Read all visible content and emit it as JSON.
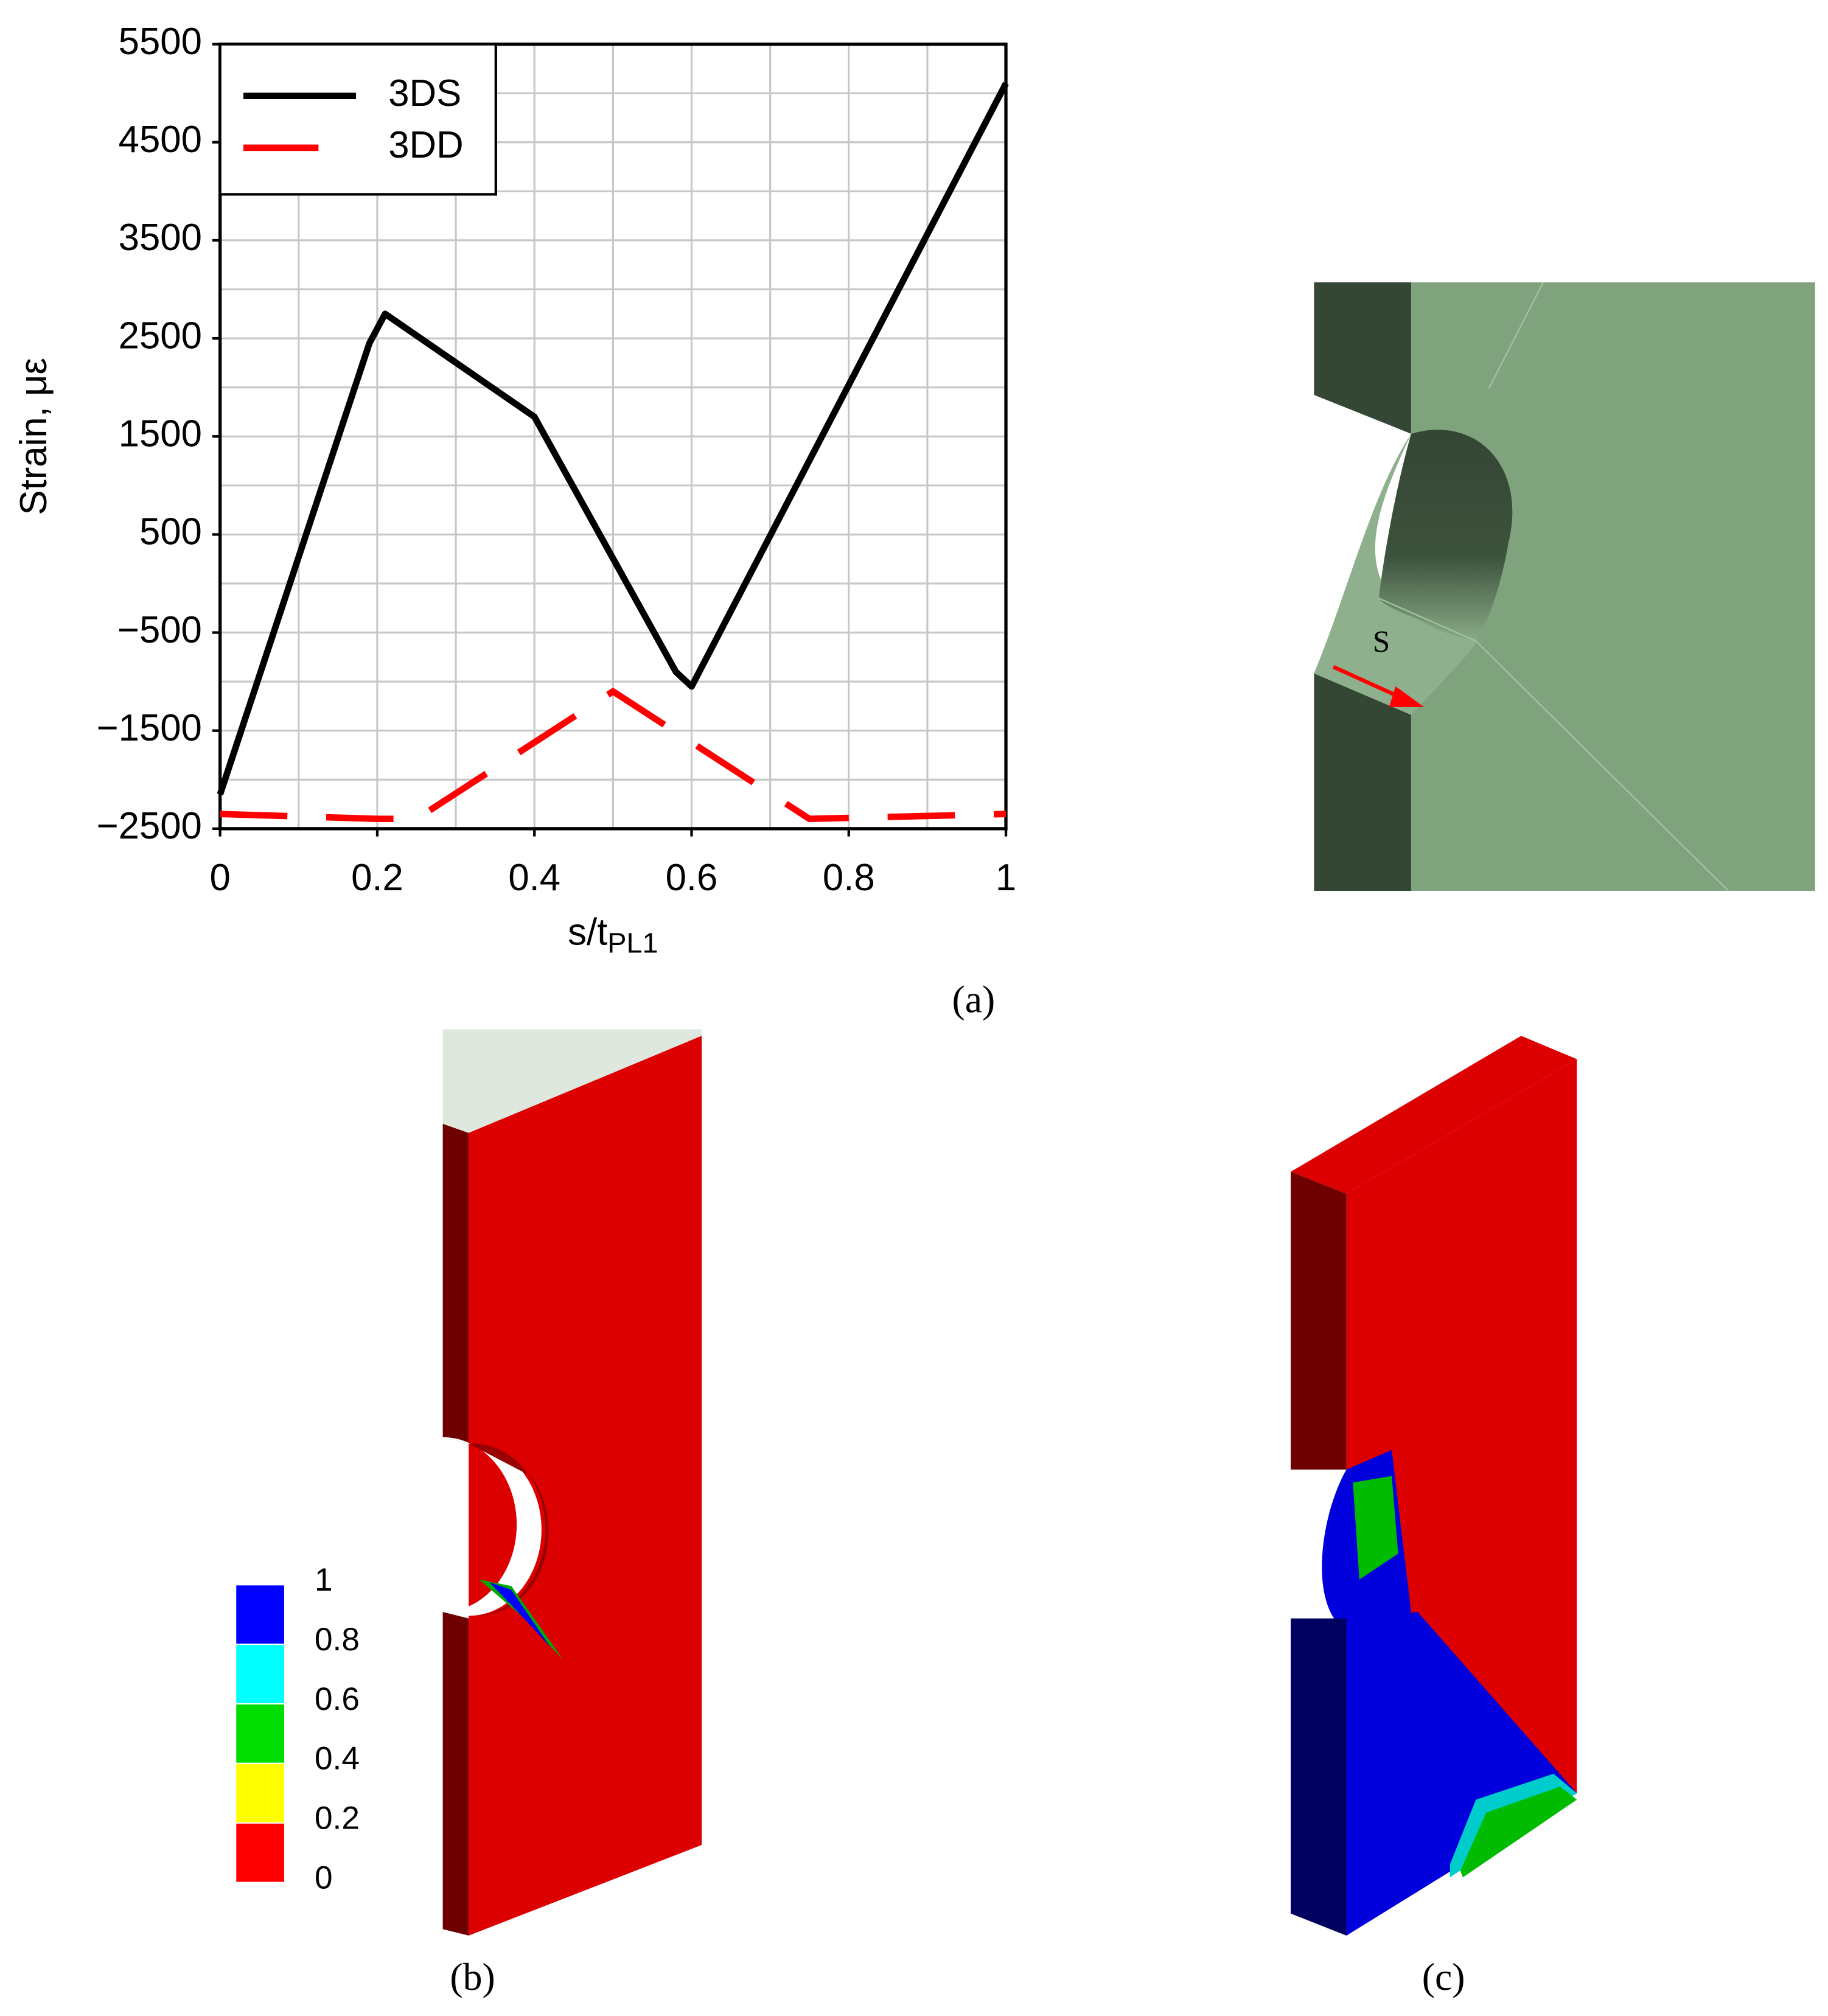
{
  "chart_data": {
    "type": "line",
    "xlabel": "s/t",
    "xlabel_sub": "PL1",
    "ylabel": "Strain, με",
    "xlim": [
      0,
      1
    ],
    "ylim": [
      -2500,
      5500
    ],
    "xticks": [
      0,
      0.2,
      0.4,
      0.6,
      0.8,
      1
    ],
    "yticks": [
      5500,
      4500,
      3500,
      2500,
      1500,
      500,
      {
        "value": -500,
        "label": "−500"
      },
      {
        "value": -1500,
        "label": "−1500"
      },
      {
        "value": -2500,
        "label": "−2500"
      }
    ],
    "grid": true,
    "legend_loc": "upper left",
    "series": [
      {
        "name": "3DS",
        "color": "#000000",
        "dashed": false,
        "x": [
          0,
          0.19,
          0.21,
          0.4,
          0.58,
          0.6,
          1
        ],
        "values": [
          -2150,
          2450,
          2750,
          1700,
          -900,
          -1050,
          5100
        ]
      },
      {
        "name": "3DD",
        "color": "#ff0000",
        "dashed": true,
        "x": [
          0,
          0.2,
          0.25,
          0.5,
          0.75,
          1
        ],
        "values": [
          -2350,
          -2400,
          -2400,
          -1100,
          -2400,
          -2350
        ]
      }
    ]
  },
  "panel_labels": [
    "(a)",
    "(b)",
    "(c)"
  ],
  "annotation": "S",
  "colorbar": {
    "values": [
      1,
      0.8,
      0.6,
      0.4,
      0.2,
      0
    ],
    "colors": [
      "#0000ff",
      "#00ffff",
      "#00dd00",
      "#ffff00",
      "#ff0000"
    ]
  }
}
